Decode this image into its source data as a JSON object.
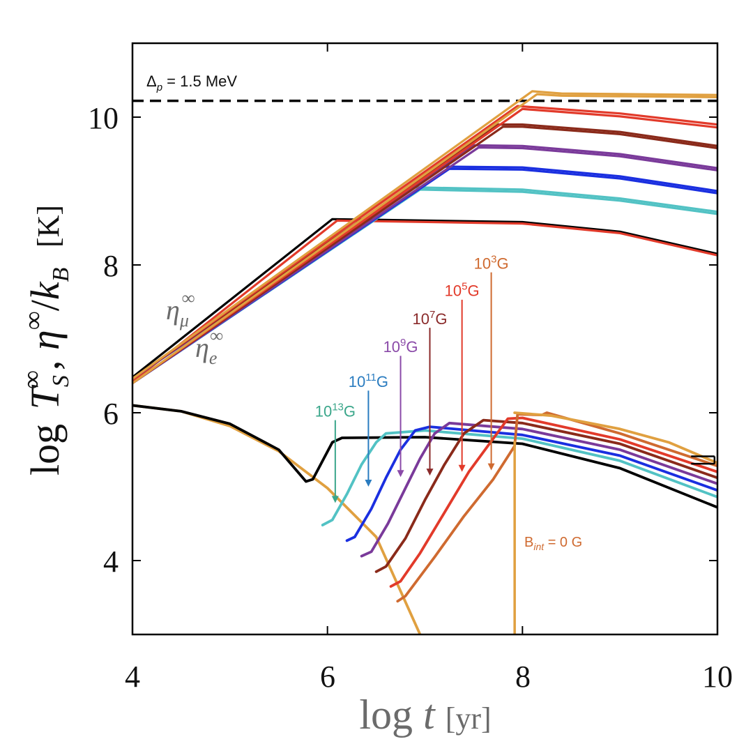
{
  "chart_data": {
    "type": "line",
    "xlabel": {
      "main": "log",
      "var": "t",
      "unit": "[yr]"
    },
    "ylabel": {
      "main": "log",
      "t_var": "T",
      "t_sub": "S",
      "t_sup": "∞",
      "comma": ",",
      "eta_var": "η",
      "eta_sup": "∞",
      "slash": "/",
      "k_var": "k",
      "k_sub": "B",
      "unit": "[K]"
    },
    "xlim": [
      4,
      10
    ],
    "ylim": [
      3,
      11
    ],
    "xticks": [
      4,
      6,
      8,
      10
    ],
    "xtick_labels": [
      "4",
      "6",
      "8",
      "10"
    ],
    "yticks": [
      4,
      6,
      8,
      10
    ],
    "ytick_labels": [
      "4",
      "6",
      "8",
      "10"
    ],
    "gap_line": {
      "value": 10.22,
      "label_main": "Δ",
      "label_sub": "p",
      "label_rest": " = 1.5 MeV"
    },
    "eta_labels": {
      "mu": {
        "var": "η",
        "sub": "μ",
        "sup": "∞"
      },
      "e": {
        "var": "η",
        "sub": "e",
        "sup": "∞"
      }
    },
    "bint_label": {
      "main": "B",
      "sub": "int",
      "rest": " = 0 G"
    },
    "eta_series": [
      {
        "name": "eta_mu_b13",
        "color": "#000000",
        "points": [
          [
            4,
            6.48
          ],
          [
            6.05,
            8.62
          ],
          [
            8,
            8.58
          ],
          [
            9,
            8.45
          ],
          [
            10,
            8.15
          ]
        ]
      },
      {
        "name": "eta_e_b13",
        "color": "#e23a2a",
        "points": [
          [
            4,
            6.42
          ],
          [
            6.1,
            8.6
          ],
          [
            8,
            8.56
          ],
          [
            9,
            8.43
          ],
          [
            10,
            8.13
          ]
        ]
      },
      {
        "name": "eta_mu_b11",
        "color": "#52c2c4",
        "points": [
          [
            4,
            6.46
          ],
          [
            6.9,
            9.05
          ],
          [
            8,
            9.02
          ],
          [
            9,
            8.9
          ],
          [
            10,
            8.72
          ]
        ]
      },
      {
        "name": "eta_e_b11",
        "color": "#52c2c4",
        "points": [
          [
            4,
            6.4
          ],
          [
            6.95,
            9.02
          ],
          [
            8,
            8.99
          ],
          [
            9,
            8.87
          ],
          [
            10,
            8.69
          ]
        ]
      },
      {
        "name": "eta_mu_b9",
        "color": "#1a2fe0",
        "points": [
          [
            4,
            6.46
          ],
          [
            7.2,
            9.33
          ],
          [
            8,
            9.32
          ],
          [
            9,
            9.2
          ],
          [
            10,
            9.0
          ]
        ]
      },
      {
        "name": "eta_e_b9",
        "color": "#1a2fe0",
        "points": [
          [
            4,
            6.4
          ],
          [
            7.25,
            9.3
          ],
          [
            8,
            9.29
          ],
          [
            9,
            9.17
          ],
          [
            10,
            8.97
          ]
        ]
      },
      {
        "name": "eta_mu_b7",
        "color": "#7a3a9a",
        "points": [
          [
            4,
            6.46
          ],
          [
            7.5,
            9.62
          ],
          [
            8,
            9.61
          ],
          [
            9,
            9.5
          ],
          [
            10,
            9.31
          ]
        ]
      },
      {
        "name": "eta_e_b7",
        "color": "#7a3a9a",
        "points": [
          [
            4,
            6.4
          ],
          [
            7.55,
            9.59
          ],
          [
            8,
            9.58
          ],
          [
            9,
            9.47
          ],
          [
            10,
            9.28
          ]
        ]
      },
      {
        "name": "eta_mu_b5",
        "color": "#8a2a1a",
        "points": [
          [
            4,
            6.46
          ],
          [
            7.75,
            9.9
          ],
          [
            8,
            9.9
          ],
          [
            9,
            9.8
          ],
          [
            10,
            9.61
          ]
        ]
      },
      {
        "name": "eta_e_b5",
        "color": "#8a2a1a",
        "points": [
          [
            4,
            6.4
          ],
          [
            7.8,
            9.87
          ],
          [
            8,
            9.87
          ],
          [
            9,
            9.77
          ],
          [
            10,
            9.58
          ]
        ]
      },
      {
        "name": "eta_mu_b3",
        "color": "#e23a2a",
        "points": [
          [
            4,
            6.46
          ],
          [
            7.95,
            10.15
          ],
          [
            9,
            10.05
          ],
          [
            10,
            9.9
          ]
        ]
      },
      {
        "name": "eta_e_b3",
        "color": "#e23a2a",
        "points": [
          [
            4,
            6.4
          ],
          [
            8.0,
            10.11
          ],
          [
            9,
            10.01
          ],
          [
            10,
            9.86
          ]
        ]
      },
      {
        "name": "eta_b0_a",
        "color": "#e0a040",
        "points": [
          [
            4,
            6.46
          ],
          [
            8.1,
            10.35
          ],
          [
            8.4,
            10.32
          ],
          [
            10,
            10.3
          ]
        ]
      },
      {
        "name": "eta_b0_b",
        "color": "#e0a040",
        "points": [
          [
            4,
            6.4
          ],
          [
            8.15,
            10.31
          ],
          [
            8.4,
            10.29
          ],
          [
            10,
            10.27
          ]
        ]
      }
    ],
    "ts_series": [
      {
        "name": "Ts_no_heating",
        "color": "#e0a040",
        "points": [
          [
            4,
            6.1
          ],
          [
            4.5,
            6.02
          ],
          [
            5,
            5.82
          ],
          [
            5.5,
            5.48
          ],
          [
            6,
            4.98
          ],
          [
            6.5,
            4.32
          ],
          [
            6.95,
            3.0
          ]
        ]
      },
      {
        "name": "Ts_B13",
        "color": "#000000",
        "points": [
          [
            4,
            6.1
          ],
          [
            4.5,
            6.02
          ],
          [
            5,
            5.85
          ],
          [
            5.5,
            5.5
          ],
          [
            5.78,
            5.07
          ],
          [
            5.85,
            5.1
          ],
          [
            5.95,
            5.35
          ],
          [
            6.05,
            5.6
          ],
          [
            6.15,
            5.66
          ],
          [
            7,
            5.67
          ],
          [
            8,
            5.58
          ],
          [
            9,
            5.25
          ],
          [
            10,
            4.72
          ]
        ]
      },
      {
        "name": "Ts_B11",
        "color": "#52c2c4",
        "points": [
          [
            5.95,
            4.48
          ],
          [
            6.05,
            4.55
          ],
          [
            6.2,
            4.9
          ],
          [
            6.35,
            5.3
          ],
          [
            6.5,
            5.6
          ],
          [
            6.6,
            5.72
          ],
          [
            7.0,
            5.76
          ],
          [
            8,
            5.65
          ],
          [
            9,
            5.35
          ],
          [
            10,
            4.86
          ]
        ]
      },
      {
        "name": "Ts_B9",
        "color": "#1a2fe0",
        "points": [
          [
            6.2,
            4.27
          ],
          [
            6.28,
            4.32
          ],
          [
            6.45,
            4.7
          ],
          [
            6.6,
            5.12
          ],
          [
            6.75,
            5.5
          ],
          [
            6.9,
            5.76
          ],
          [
            7.05,
            5.81
          ],
          [
            8,
            5.7
          ],
          [
            9,
            5.42
          ],
          [
            10,
            4.95
          ]
        ]
      },
      {
        "name": "Ts_B7",
        "color": "#7a3a9a",
        "points": [
          [
            6.35,
            4.06
          ],
          [
            6.45,
            4.12
          ],
          [
            6.62,
            4.5
          ],
          [
            6.8,
            4.98
          ],
          [
            6.95,
            5.38
          ],
          [
            7.1,
            5.72
          ],
          [
            7.25,
            5.86
          ],
          [
            8,
            5.78
          ],
          [
            9,
            5.5
          ],
          [
            10,
            5.04
          ]
        ]
      },
      {
        "name": "Ts_B5",
        "color": "#8a2a1a",
        "points": [
          [
            6.5,
            3.85
          ],
          [
            6.6,
            3.92
          ],
          [
            6.8,
            4.3
          ],
          [
            7.0,
            4.82
          ],
          [
            7.2,
            5.3
          ],
          [
            7.4,
            5.72
          ],
          [
            7.6,
            5.9
          ],
          [
            8,
            5.86
          ],
          [
            9,
            5.58
          ],
          [
            10,
            5.12
          ]
        ]
      },
      {
        "name": "Ts_B3",
        "color": "#e23a2a",
        "points": [
          [
            6.65,
            3.65
          ],
          [
            6.75,
            3.72
          ],
          [
            6.95,
            4.1
          ],
          [
            7.2,
            4.65
          ],
          [
            7.45,
            5.2
          ],
          [
            7.7,
            5.65
          ],
          [
            7.85,
            5.92
          ],
          [
            8,
            5.93
          ],
          [
            9,
            5.64
          ],
          [
            10,
            5.2
          ]
        ]
      },
      {
        "name": "Ts_B0",
        "color": "#cf6a30",
        "points": [
          [
            6.72,
            3.45
          ],
          [
            6.8,
            3.52
          ],
          [
            7.1,
            4.05
          ],
          [
            7.4,
            4.6
          ],
          [
            7.7,
            5.1
          ],
          [
            7.92,
            5.55
          ],
          [
            7.95,
            5.98
          ],
          [
            8.2,
            5.97
          ],
          [
            8.25,
            6.0
          ],
          [
            9,
            5.72
          ],
          [
            10,
            5.28
          ]
        ]
      },
      {
        "name": "Ts_B0_envelope",
        "color": "#e0a040",
        "points": [
          [
            7.92,
            6.0
          ],
          [
            8.3,
            5.96
          ],
          [
            9,
            5.78
          ],
          [
            9.5,
            5.6
          ],
          [
            10,
            5.32
          ]
        ]
      }
    ],
    "cutoff_line": {
      "color": "#e0a040",
      "x": 7.92,
      "y_top": 5.62,
      "y_bottom": 3.0
    },
    "error_bar": {
      "x": 9.85,
      "y": 5.36,
      "halfwidth": 0.12,
      "halfheight": 0.05
    },
    "field_labels": [
      {
        "mant": "10",
        "exp": "13",
        "unit": "G",
        "color": "#3aa68a",
        "x": 6.08,
        "y_label": 5.95,
        "y_arrow_start": 5.9,
        "y_arrow_end": 4.78
      },
      {
        "mant": "10",
        "exp": "11",
        "unit": "G",
        "color": "#2a7cc0",
        "x": 6.42,
        "y_label": 6.35,
        "y_arrow_start": 6.3,
        "y_arrow_end": 5.0
      },
      {
        "mant": "10",
        "exp": "9",
        "unit": "G",
        "color": "#8a4aa8",
        "x": 6.75,
        "y_label": 6.82,
        "y_arrow_start": 6.77,
        "y_arrow_end": 5.13
      },
      {
        "mant": "10",
        "exp": "7",
        "unit": "G",
        "color": "#8a2a2a",
        "x": 7.05,
        "y_label": 7.2,
        "y_arrow_start": 7.15,
        "y_arrow_end": 5.15
      },
      {
        "mant": "10",
        "exp": "5",
        "unit": "G",
        "color": "#e23a2a",
        "x": 7.38,
        "y_label": 7.58,
        "y_arrow_start": 7.53,
        "y_arrow_end": 5.2
      },
      {
        "mant": "10",
        "exp": "3",
        "unit": "G",
        "color": "#cf6a30",
        "x": 7.68,
        "y_label": 7.95,
        "y_arrow_start": 7.9,
        "y_arrow_end": 5.22
      }
    ]
  }
}
